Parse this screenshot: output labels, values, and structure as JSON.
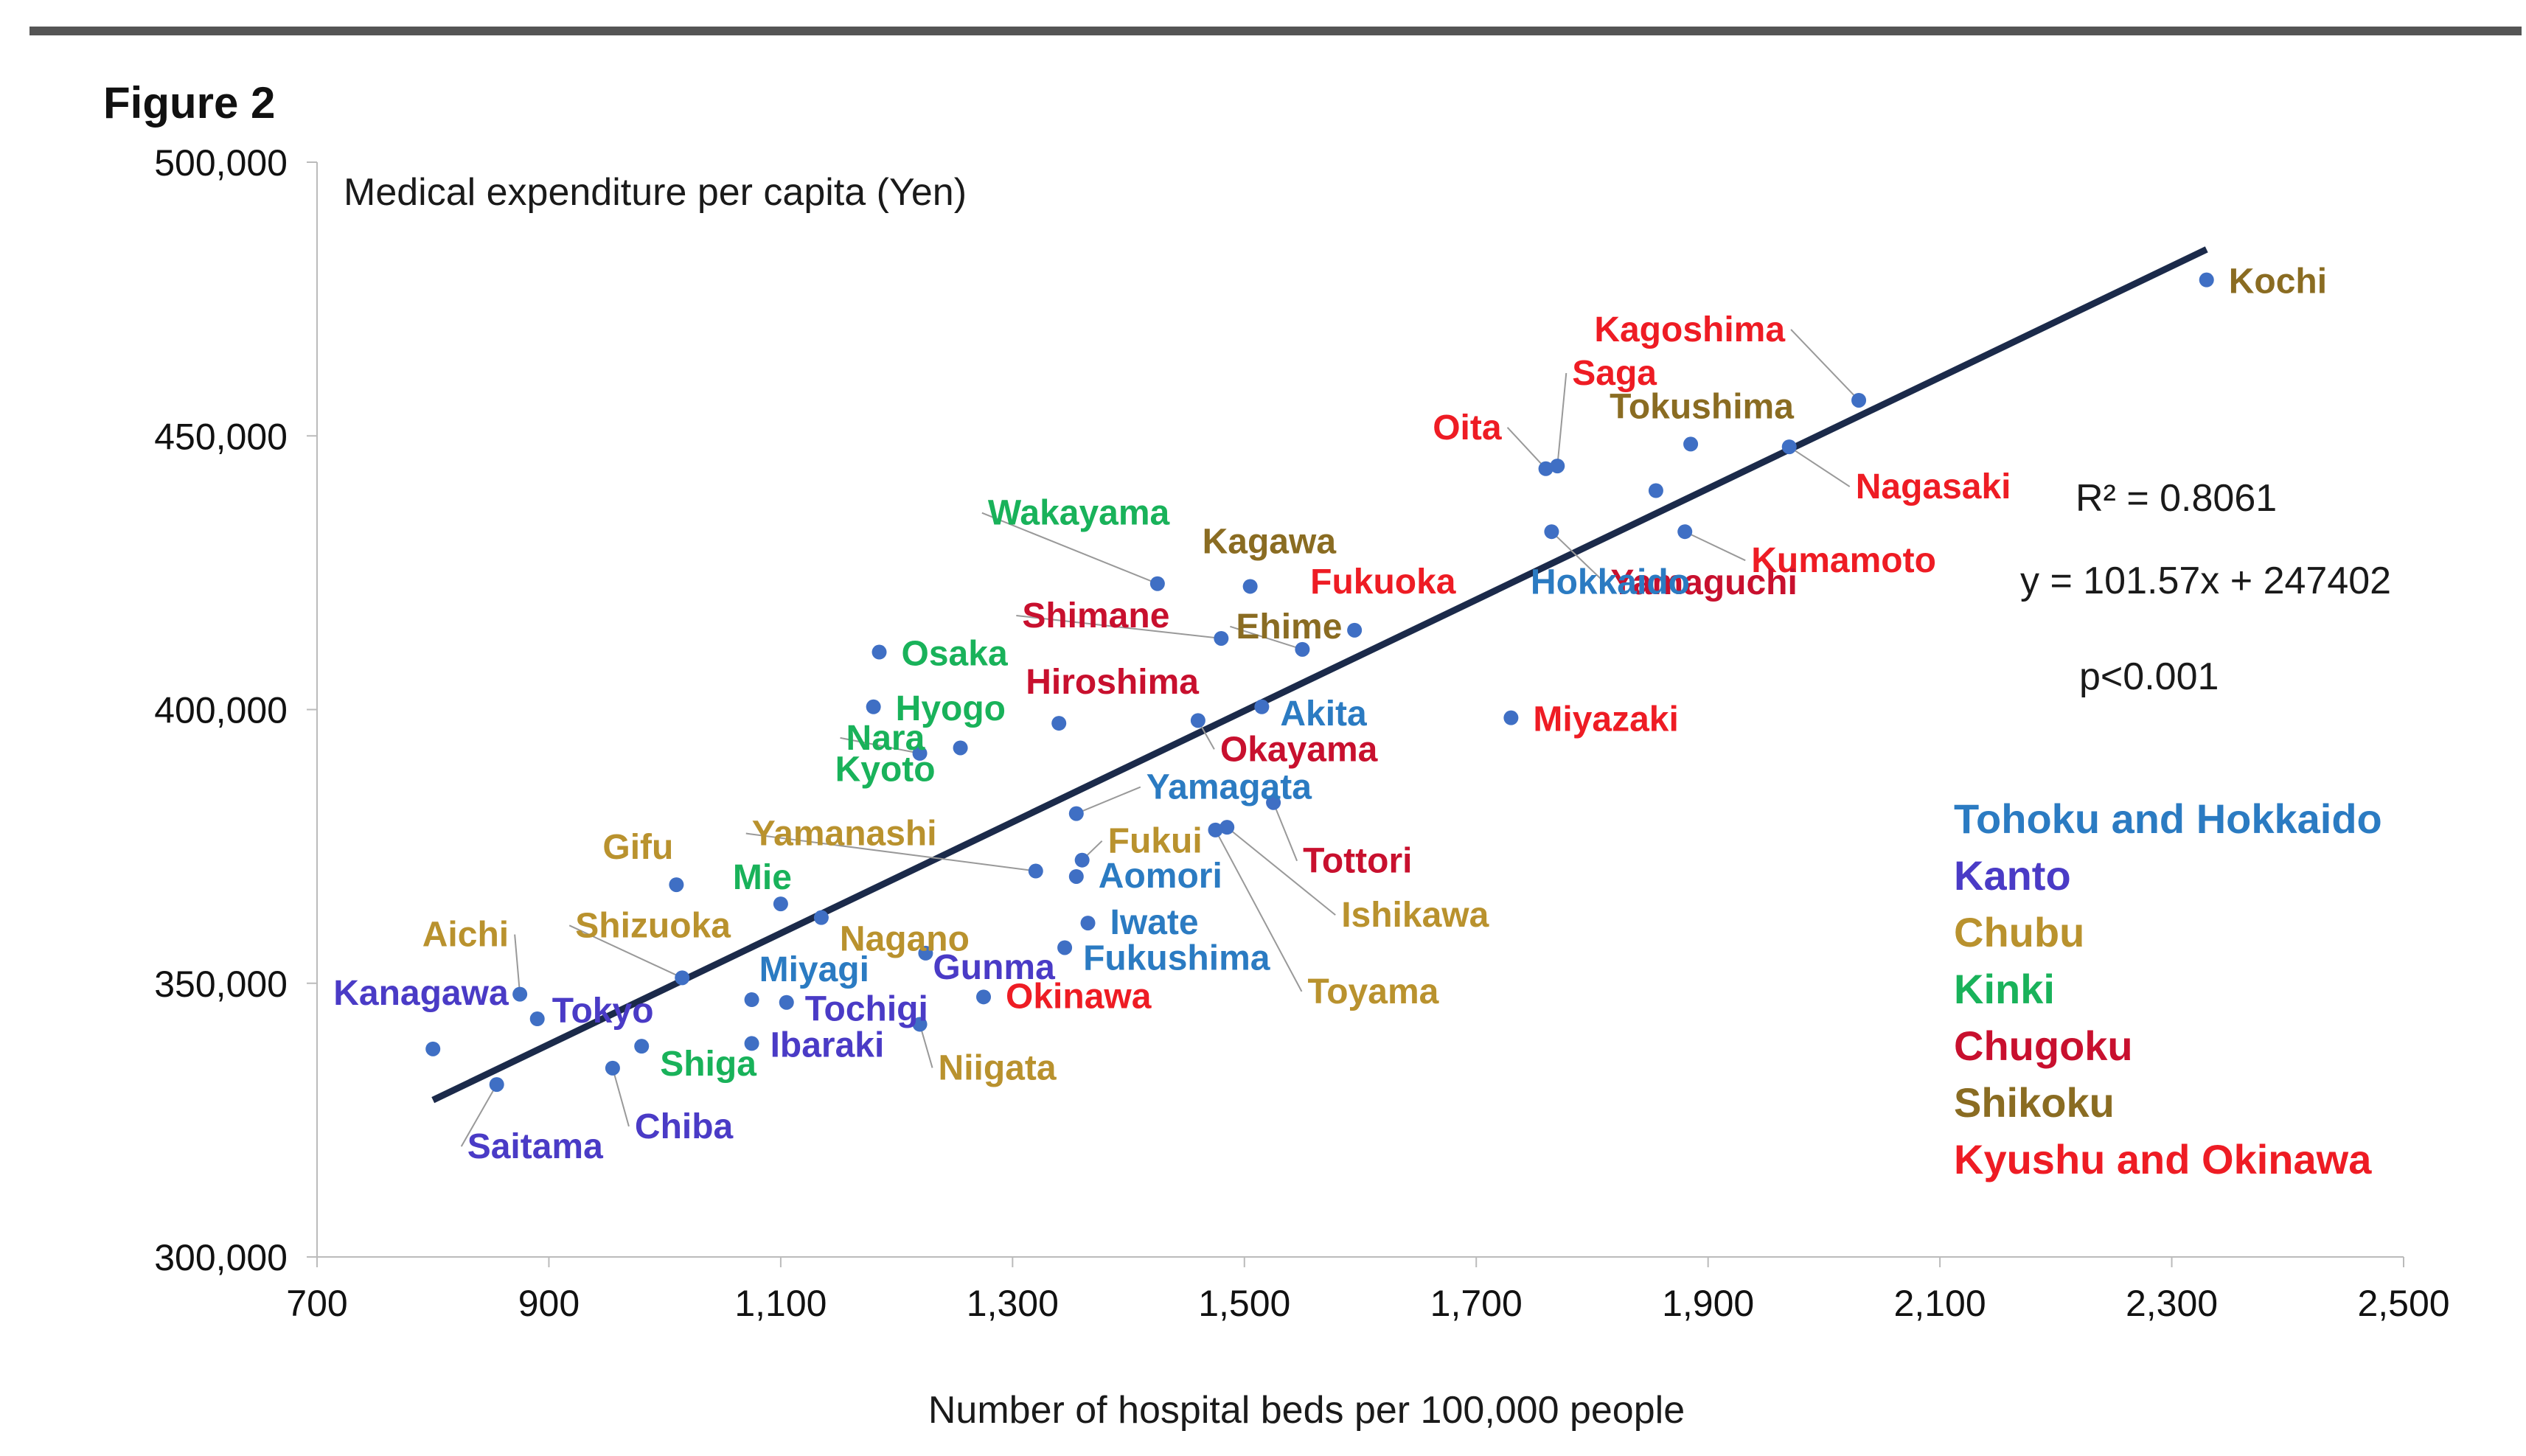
{
  "figure_label": "Figure 2",
  "colors": {
    "Tohoku and Hokkaido": "#2b7bc2",
    "Kanto": "#4a3bc6",
    "Chubu": "#b9922e",
    "Kinki": "#19b25a",
    "Chugoku": "#c8102e",
    "Shikoku": "#8a6c22",
    "Kyushu and Okinawa": "#ee1c24",
    "point": "#3f6fc4",
    "trend": "#1b2a4a",
    "top_rule": "#555555"
  },
  "regression": {
    "r2": "R² = 0.8061",
    "equation": "y = 101.57x + 247402",
    "p": "p<0.001",
    "slope": 101.57,
    "intercept": 247402,
    "x_range": [
      800,
      2330
    ]
  },
  "chart_data": {
    "type": "scatter",
    "title": "Figure 2",
    "xlabel": "Number of hospital beds per 100,000 people",
    "ylabel": "Medical expenditure per capita (Yen)",
    "xlim": [
      700,
      2500
    ],
    "ylim": [
      300000,
      500000
    ],
    "x_ticks": [
      "700",
      "900",
      "1,100",
      "1,300",
      "1,500",
      "1,700",
      "1,900",
      "2,100",
      "2,300",
      "2,500"
    ],
    "y_ticks": [
      "300,000",
      "350,000",
      "400,000",
      "450,000",
      "500,000"
    ],
    "legend": [
      "Tohoku and Hokkaido",
      "Kanto",
      "Chubu",
      "Kinki",
      "Chugoku",
      "Shikoku",
      "Kyushu and Okinawa"
    ],
    "points": [
      {
        "name": "Kochi",
        "region": "Shikoku",
        "x": 2330,
        "y": 478500
      },
      {
        "name": "Kagoshima",
        "region": "Kyushu and Okinawa",
        "x": 2030,
        "y": 456500
      },
      {
        "name": "Saga",
        "region": "Kyushu and Okinawa",
        "x": 1770,
        "y": 444500
      },
      {
        "name": "Oita",
        "region": "Kyushu and Okinawa",
        "x": 1760,
        "y": 444000
      },
      {
        "name": "Tokushima",
        "region": "Shikoku",
        "x": 1885,
        "y": 448500
      },
      {
        "name": "Nagasaki",
        "region": "Kyushu and Okinawa",
        "x": 1970,
        "y": 448000
      },
      {
        "name": "Kumamoto",
        "region": "Kyushu and Okinawa",
        "x": 1880,
        "y": 432500
      },
      {
        "name": "Yamaguchi",
        "region": "Chugoku",
        "x": 1765,
        "y": 432500
      },
      {
        "name": "Hokkaido",
        "region": "Tohoku and Hokkaido",
        "x": 1855,
        "y": 440000
      },
      {
        "name": "Miyazaki",
        "region": "Kyushu and Okinawa",
        "x": 1730,
        "y": 398500
      },
      {
        "name": "Wakayama",
        "region": "Kinki",
        "x": 1425,
        "y": 423000
      },
      {
        "name": "Kagawa",
        "region": "Shikoku",
        "x": 1505,
        "y": 422500
      },
      {
        "name": "Fukuoka",
        "region": "Kyushu and Okinawa",
        "x": 1595,
        "y": 414500
      },
      {
        "name": "Shimane",
        "region": "Chugoku",
        "x": 1480,
        "y": 413000
      },
      {
        "name": "Ehime",
        "region": "Shikoku",
        "x": 1550,
        "y": 411000
      },
      {
        "name": "Osaka",
        "region": "Kinki",
        "x": 1185,
        "y": 410500
      },
      {
        "name": "Hyogo",
        "region": "Kinki",
        "x": 1180,
        "y": 400500
      },
      {
        "name": "Hiroshima",
        "region": "Chugoku",
        "x": 1340,
        "y": 397500
      },
      {
        "name": "Akita",
        "region": "Tohoku and Hokkaido",
        "x": 1515,
        "y": 400500
      },
      {
        "name": "Okayama",
        "region": "Chugoku",
        "x": 1460,
        "y": 398000
      },
      {
        "name": "Nara",
        "region": "Kinki",
        "x": 1220,
        "y": 392000
      },
      {
        "name": "Kyoto",
        "region": "Kinki",
        "x": 1255,
        "y": 393000
      },
      {
        "name": "Yamagata",
        "region": "Tohoku and Hokkaido",
        "x": 1355,
        "y": 381000
      },
      {
        "name": "Tottori",
        "region": "Chugoku",
        "x": 1525,
        "y": 383000
      },
      {
        "name": "Ishikawa",
        "region": "Chubu",
        "x": 1485,
        "y": 378500
      },
      {
        "name": "Toyama",
        "region": "Chubu",
        "x": 1475,
        "y": 378000
      },
      {
        "name": "Yamanashi",
        "region": "Chubu",
        "x": 1320,
        "y": 370500
      },
      {
        "name": "Fukui",
        "region": "Chubu",
        "x": 1360,
        "y": 372500
      },
      {
        "name": "Aomori",
        "region": "Tohoku and Hokkaido",
        "x": 1355,
        "y": 369500
      },
      {
        "name": "Gifu",
        "region": "Chubu",
        "x": 1010,
        "y": 368000
      },
      {
        "name": "Mie",
        "region": "Kinki",
        "x": 1100,
        "y": 364500
      },
      {
        "name": "Nagano",
        "region": "Chubu",
        "x": 1135,
        "y": 362000
      },
      {
        "name": "Iwate",
        "region": "Tohoku and Hokkaido",
        "x": 1365,
        "y": 361000
      },
      {
        "name": "Fukushima",
        "region": "Tohoku and Hokkaido",
        "x": 1345,
        "y": 356500
      },
      {
        "name": "Gunma",
        "region": "Kanto",
        "x": 1225,
        "y": 355500
      },
      {
        "name": "Shizuoka",
        "region": "Chubu",
        "x": 1015,
        "y": 351000
      },
      {
        "name": "Miyagi",
        "region": "Tohoku and Hokkaido",
        "x": 1075,
        "y": 347000
      },
      {
        "name": "Tochigi",
        "region": "Kanto",
        "x": 1105,
        "y": 346500
      },
      {
        "name": "Okinawa",
        "region": "Kyushu and Okinawa",
        "x": 1275,
        "y": 347500
      },
      {
        "name": "Aichi",
        "region": "Chubu",
        "x": 875,
        "y": 348000
      },
      {
        "name": "Tokyo",
        "region": "Kanto",
        "x": 890,
        "y": 343500
      },
      {
        "name": "Niigata",
        "region": "Chubu",
        "x": 1220,
        "y": 342500
      },
      {
        "name": "Ibaraki",
        "region": "Kanto",
        "x": 1075,
        "y": 339000
      },
      {
        "name": "Shiga",
        "region": "Kinki",
        "x": 980,
        "y": 338500
      },
      {
        "name": "Kanagawa",
        "region": "Kanto",
        "x": 800,
        "y": 338000
      },
      {
        "name": "Chiba",
        "region": "Kanto",
        "x": 955,
        "y": 334500
      },
      {
        "name": "Saitama",
        "region": "Kanto",
        "x": 855,
        "y": 331500
      }
    ]
  }
}
